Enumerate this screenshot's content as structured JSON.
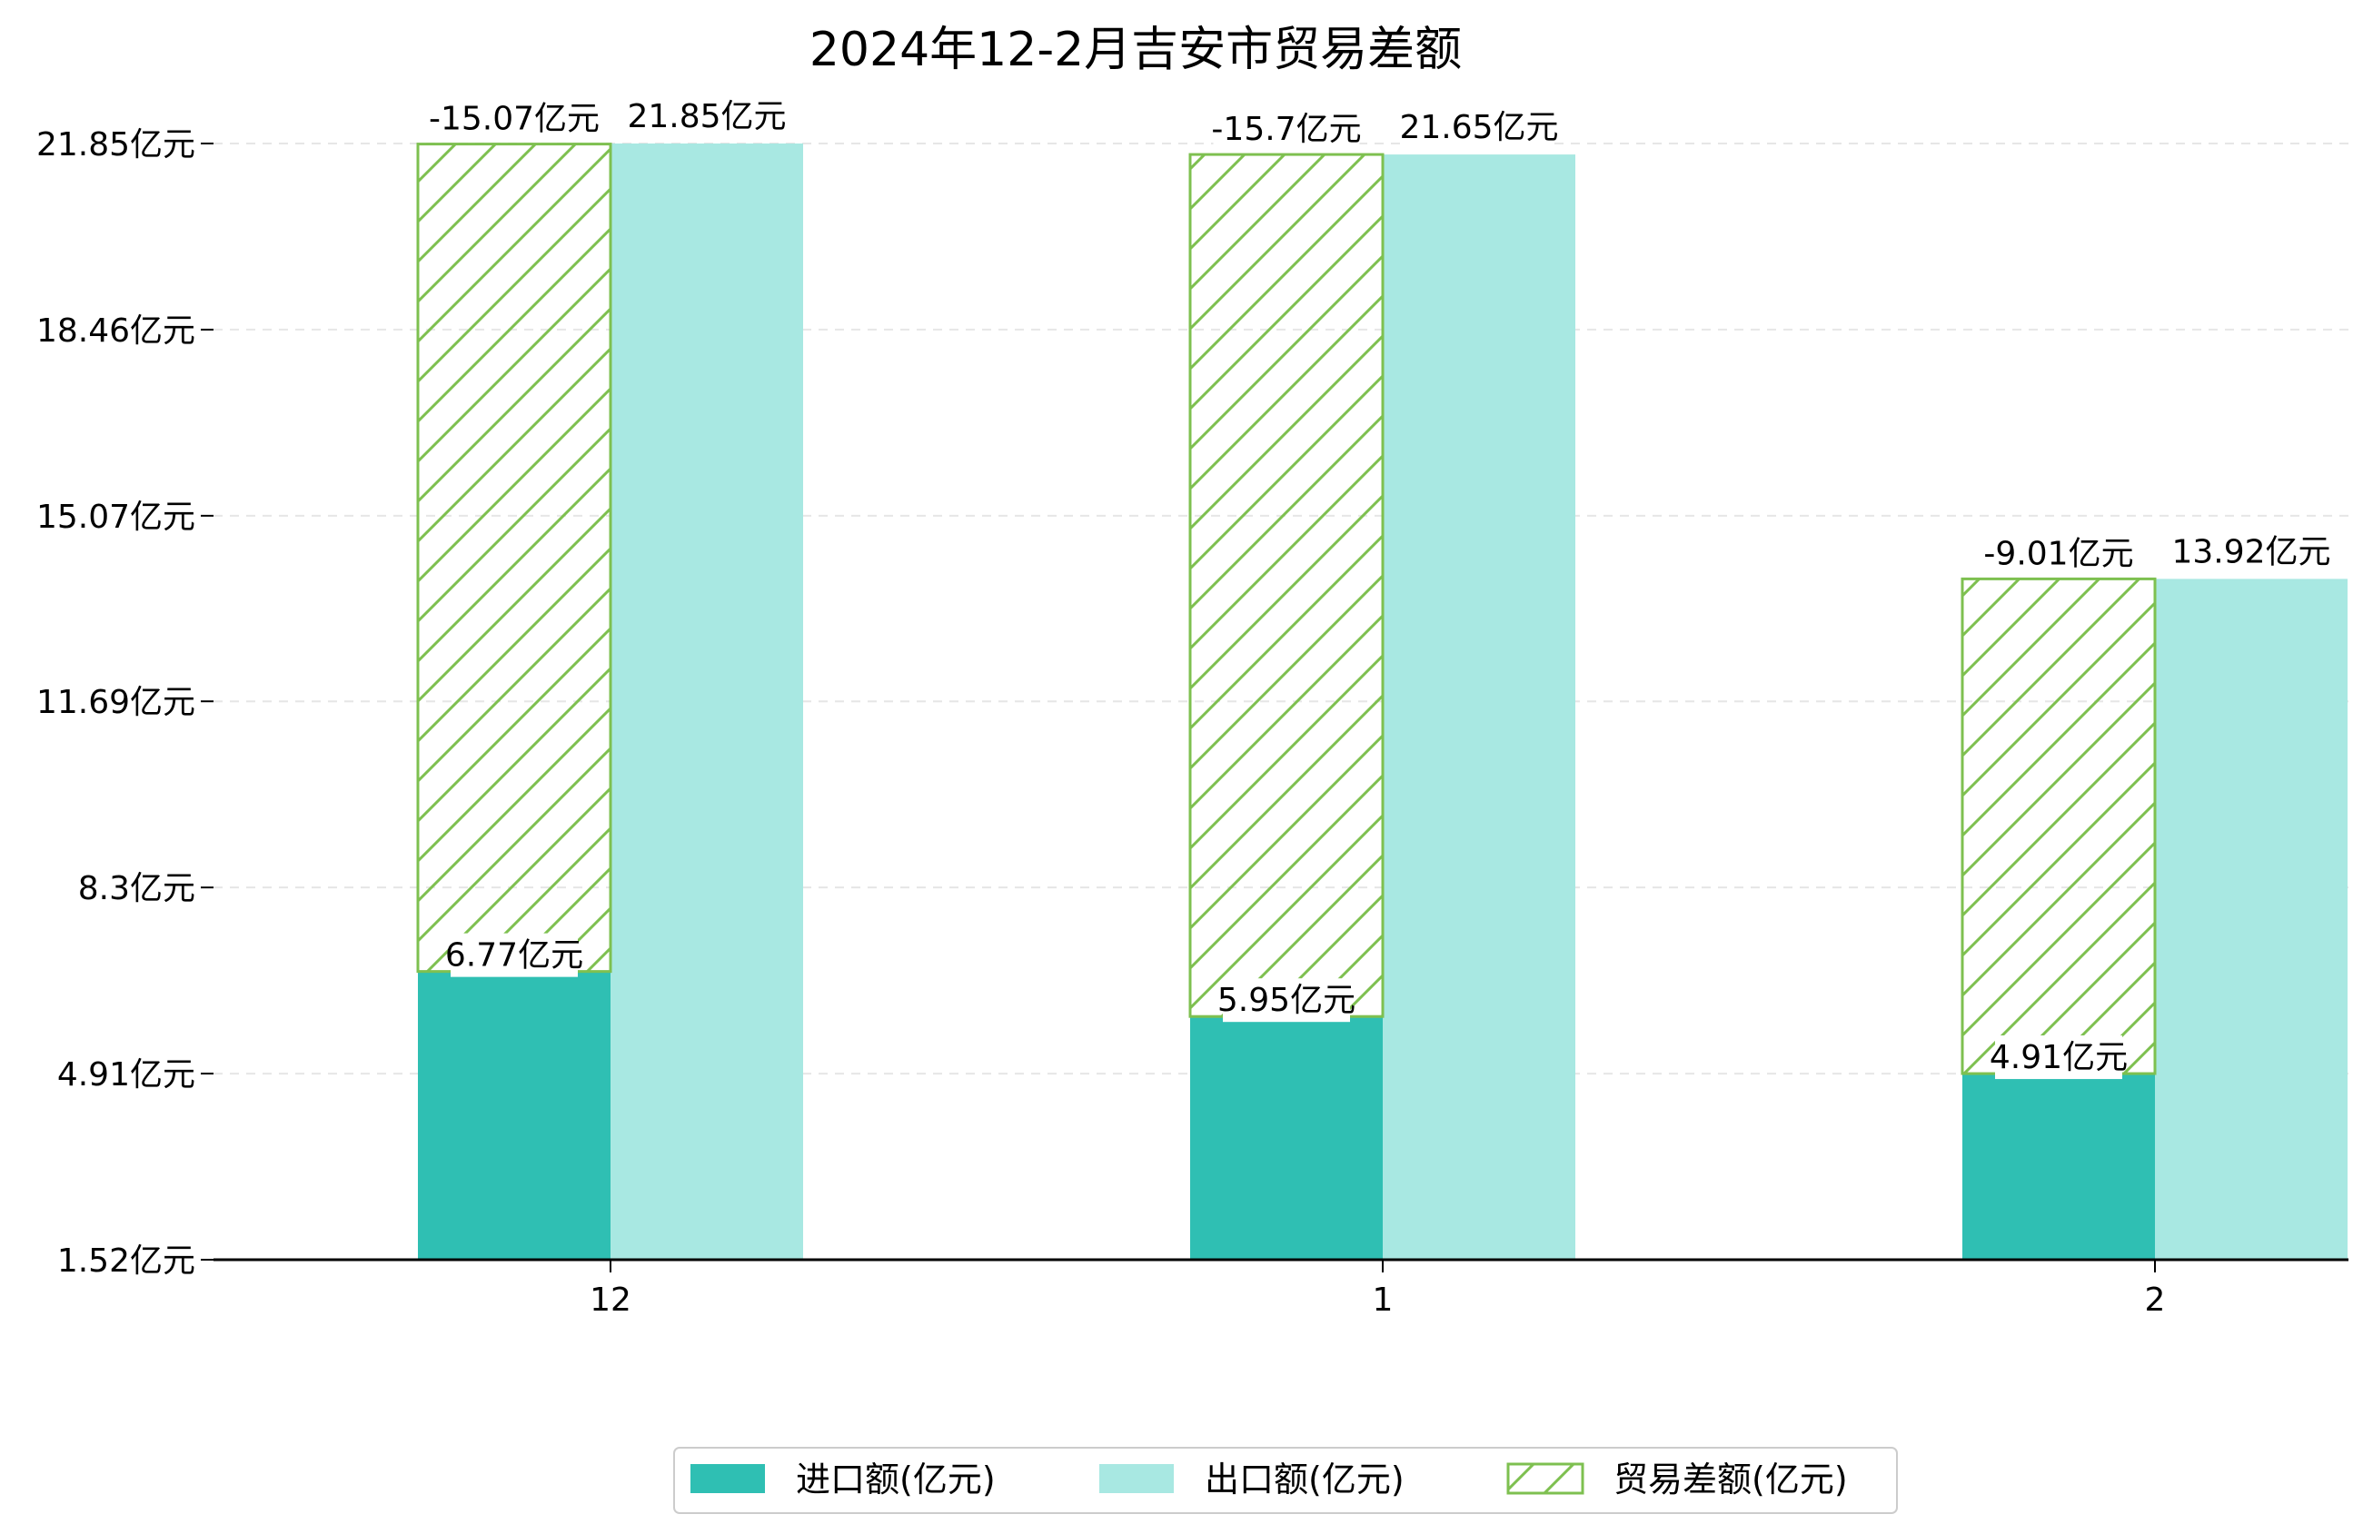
{
  "chart_data": {
    "type": "bar",
    "title": "2024年12-2月吉安市贸易差额",
    "xlabel": "",
    "ylabel": "",
    "categories": [
      "12",
      "1",
      "2"
    ],
    "ylim": [
      1.52,
      23.2
    ],
    "yticks": [
      "1.52亿元",
      "4.91亿元",
      "8.3亿元",
      "11.69亿元",
      "15.07亿元",
      "18.46亿元",
      "21.85亿元"
    ],
    "ytick_values": [
      1.52,
      4.91,
      8.3,
      11.69,
      15.07,
      18.46,
      21.85
    ],
    "grid": "horizontal-dashed",
    "legend_position": "bottom-center",
    "series": [
      {
        "name": "进口额(亿元)",
        "color": "#2fbfb3",
        "values": [
          6.77,
          5.95,
          4.91
        ],
        "labels": [
          "6.77亿元",
          "5.95亿元",
          "4.91亿元"
        ]
      },
      {
        "name": "出口额(亿元)",
        "color": "#a8e8e2",
        "values": [
          21.85,
          21.65,
          13.92
        ],
        "labels": [
          "21.85亿元",
          "21.65亿元",
          "13.92亿元"
        ]
      },
      {
        "name": "贸易差额(亿元)",
        "color": "#7ec050",
        "pattern": "hatch",
        "values": [
          -15.07,
          -15.7,
          -9.01
        ],
        "labels": [
          "-15.07亿元",
          "-15.7亿元",
          "-9.01亿元"
        ]
      }
    ]
  }
}
